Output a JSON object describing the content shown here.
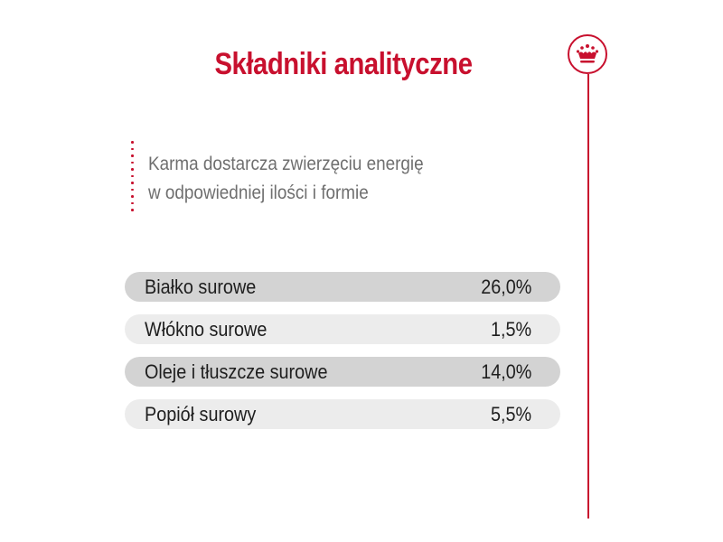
{
  "title": "Składniki analityczne",
  "description": {
    "line1": "Karma dostarcza zwierzęciu energię",
    "line2": "w odpowiedniej ilości i formie"
  },
  "logo": {
    "icon": "crown-icon"
  },
  "table": {
    "rows": [
      {
        "label": "Białko surowe",
        "value": "26,0%"
      },
      {
        "label": "Włókno surowe",
        "value": "1,5%"
      },
      {
        "label": "Oleje i tłuszcze surowe",
        "value": "14,0%"
      },
      {
        "label": "Popiół surowy",
        "value": "5,5%"
      }
    ]
  },
  "colors": {
    "brand_red": "#c8102e",
    "row_dark": "#d3d3d3",
    "row_light": "#ececec",
    "text_dark": "#1e1e1e",
    "text_gray": "#6f6f6f"
  }
}
